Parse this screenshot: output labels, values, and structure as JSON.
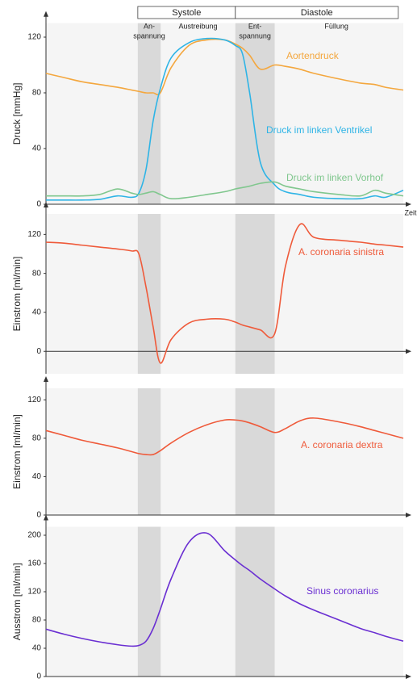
{
  "chart_data": [
    {
      "type": "line",
      "ylabel": "Druck [mmHg]",
      "xlabel": "Zeit",
      "xlim": [
        0,
        100
      ],
      "ylim": [
        0,
        130
      ],
      "yticks": [
        0,
        40,
        80,
        120
      ],
      "phases": [
        {
          "label": "Systole",
          "start": 25.7,
          "end": 53,
          "subphases": [
            {
              "label": [
                "An-",
                "spannung"
              ],
              "start": 25.7,
              "end": 32.1,
              "shaded": true
            },
            {
              "label": [
                "Austreibung"
              ],
              "start": 32.1,
              "end": 53,
              "shaded": false
            }
          ]
        },
        {
          "label": "Diastole",
          "start": 53,
          "end": 98.6,
          "subphases": [
            {
              "label": [
                "Ent-",
                "spannung"
              ],
              "start": 53,
              "end": 64,
              "shaded": true
            },
            {
              "label": [
                "Füllung"
              ],
              "start": 64,
              "end": 98.6,
              "shaded": false
            }
          ]
        }
      ],
      "x": [
        0,
        5,
        10,
        15,
        20,
        24,
        26,
        28,
        30,
        32,
        35,
        40,
        45,
        50,
        53,
        55,
        57,
        60,
        64,
        67,
        71,
        75,
        82,
        88,
        92,
        95,
        100
      ],
      "series": [
        {
          "name": "Aortendruck",
          "color": "#f4a73e",
          "values": [
            94,
            91,
            88,
            86,
            84,
            82,
            81,
            80,
            80,
            80,
            98,
            114,
            118,
            118,
            115,
            112,
            107,
            97,
            100,
            99,
            97,
            94,
            90,
            87,
            86,
            84,
            82
          ]
        },
        {
          "name": "Druck im linken Ventrikel",
          "color": "#2eb4e6",
          "values": [
            3,
            3,
            3,
            3.5,
            6,
            5,
            8,
            25,
            60,
            83,
            105,
            116,
            119,
            118,
            114,
            108,
            80,
            30,
            14,
            9,
            7,
            5,
            4,
            4,
            6,
            5,
            10
          ]
        },
        {
          "name": "Druck im linken Vorhof",
          "color": "#80c78e",
          "values": [
            6,
            6,
            6,
            7,
            11,
            8,
            7,
            8,
            9,
            7,
            4,
            5,
            7,
            9,
            11,
            12,
            13,
            15,
            16,
            13,
            11,
            9,
            7,
            6,
            10,
            8,
            6
          ]
        }
      ]
    },
    {
      "type": "line",
      "ylabel": "Einstrom [ml/min]",
      "xlim": [
        0,
        100
      ],
      "ylim": [
        -23,
        141
      ],
      "yticks": [
        0,
        40,
        80,
        120
      ],
      "x": [
        0,
        5,
        10,
        15,
        20,
        24,
        26,
        28,
        30,
        32,
        35,
        40,
        45,
        50,
        53,
        55,
        57,
        60,
        64,
        67,
        71,
        75,
        82,
        88,
        92,
        95,
        100
      ],
      "series": [
        {
          "name": "A. coronaria sinistra",
          "color": "#ef5a3a",
          "values": [
            112,
            111,
            109,
            107,
            105,
            103,
            100,
            66,
            25,
            -12,
            12,
            29,
            33,
            33,
            30,
            27,
            25,
            22,
            18,
            87,
            130,
            117,
            114,
            112,
            110,
            109,
            107
          ]
        }
      ]
    },
    {
      "type": "line",
      "ylabel": "Einstrom [ml/min]",
      "xlim": [
        0,
        100
      ],
      "ylim": [
        0,
        132
      ],
      "yticks": [
        0,
        40,
        80,
        120
      ],
      "x": [
        0,
        5,
        10,
        15,
        20,
        24,
        26,
        28,
        30,
        32,
        35,
        40,
        45,
        50,
        53,
        55,
        57,
        60,
        64,
        67,
        71,
        75,
        82,
        88,
        92,
        95,
        100
      ],
      "series": [
        {
          "name": "A. coronaria dextra",
          "color": "#ef5a3a",
          "values": [
            88,
            83,
            78,
            74,
            70,
            66,
            64,
            63,
            63,
            67,
            75,
            86,
            94,
            99,
            99,
            98,
            96,
            92,
            86,
            90,
            98,
            101,
            97,
            92,
            88,
            85,
            80
          ]
        }
      ]
    },
    {
      "type": "line",
      "ylabel": "Ausstrom [ml/min]",
      "xlim": [
        0,
        100
      ],
      "ylim": [
        0,
        212
      ],
      "yticks": [
        0,
        40,
        80,
        120,
        160,
        200
      ],
      "x": [
        0,
        5,
        10,
        15,
        20,
        24,
        26,
        28,
        30,
        32,
        35,
        40,
        45,
        50,
        53,
        55,
        57,
        60,
        64,
        67,
        71,
        75,
        82,
        88,
        92,
        95,
        100
      ],
      "series": [
        {
          "name": "Sinus coronarius",
          "color": "#6a2fd2",
          "values": [
            67,
            60,
            54,
            49,
            45,
            43,
            44,
            50,
            68,
            95,
            138,
            190,
            203,
            178,
            165,
            157,
            150,
            138,
            124,
            114,
            103,
            94,
            80,
            68,
            62,
            57,
            50
          ]
        }
      ]
    }
  ]
}
